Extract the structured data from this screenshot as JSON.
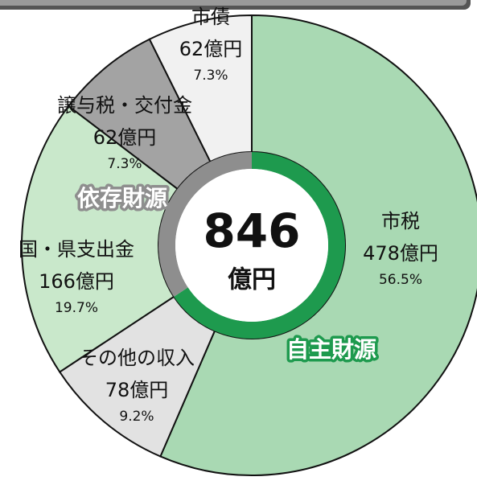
{
  "chart_data": {
    "type": "donut",
    "categories": [
      "市税",
      "その他の収入",
      "国・県支出金",
      "譲与税・交付金",
      "市債"
    ],
    "values": [
      478,
      78,
      166,
      62,
      62
    ],
    "value_labels": [
      "478億円",
      "78億円",
      "166億円",
      "62億円",
      "62億円"
    ],
    "percent_labels": [
      "56.5%",
      "9.2%",
      "19.7%",
      "7.3%",
      "7.3%"
    ],
    "colors": [
      "#a9d9b3",
      "#e2e2e2",
      "#c9e8cb",
      "#a3a3a3",
      "#f1f1f1"
    ],
    "groups": [
      {
        "name": "自主財源",
        "color": "#1e9a4e",
        "members": [
          0,
          1
        ]
      },
      {
        "name": "依存財源",
        "color": "#8e8e8e",
        "members": [
          2,
          3,
          4
        ]
      }
    ],
    "total": 846,
    "total_unit": "億円"
  }
}
